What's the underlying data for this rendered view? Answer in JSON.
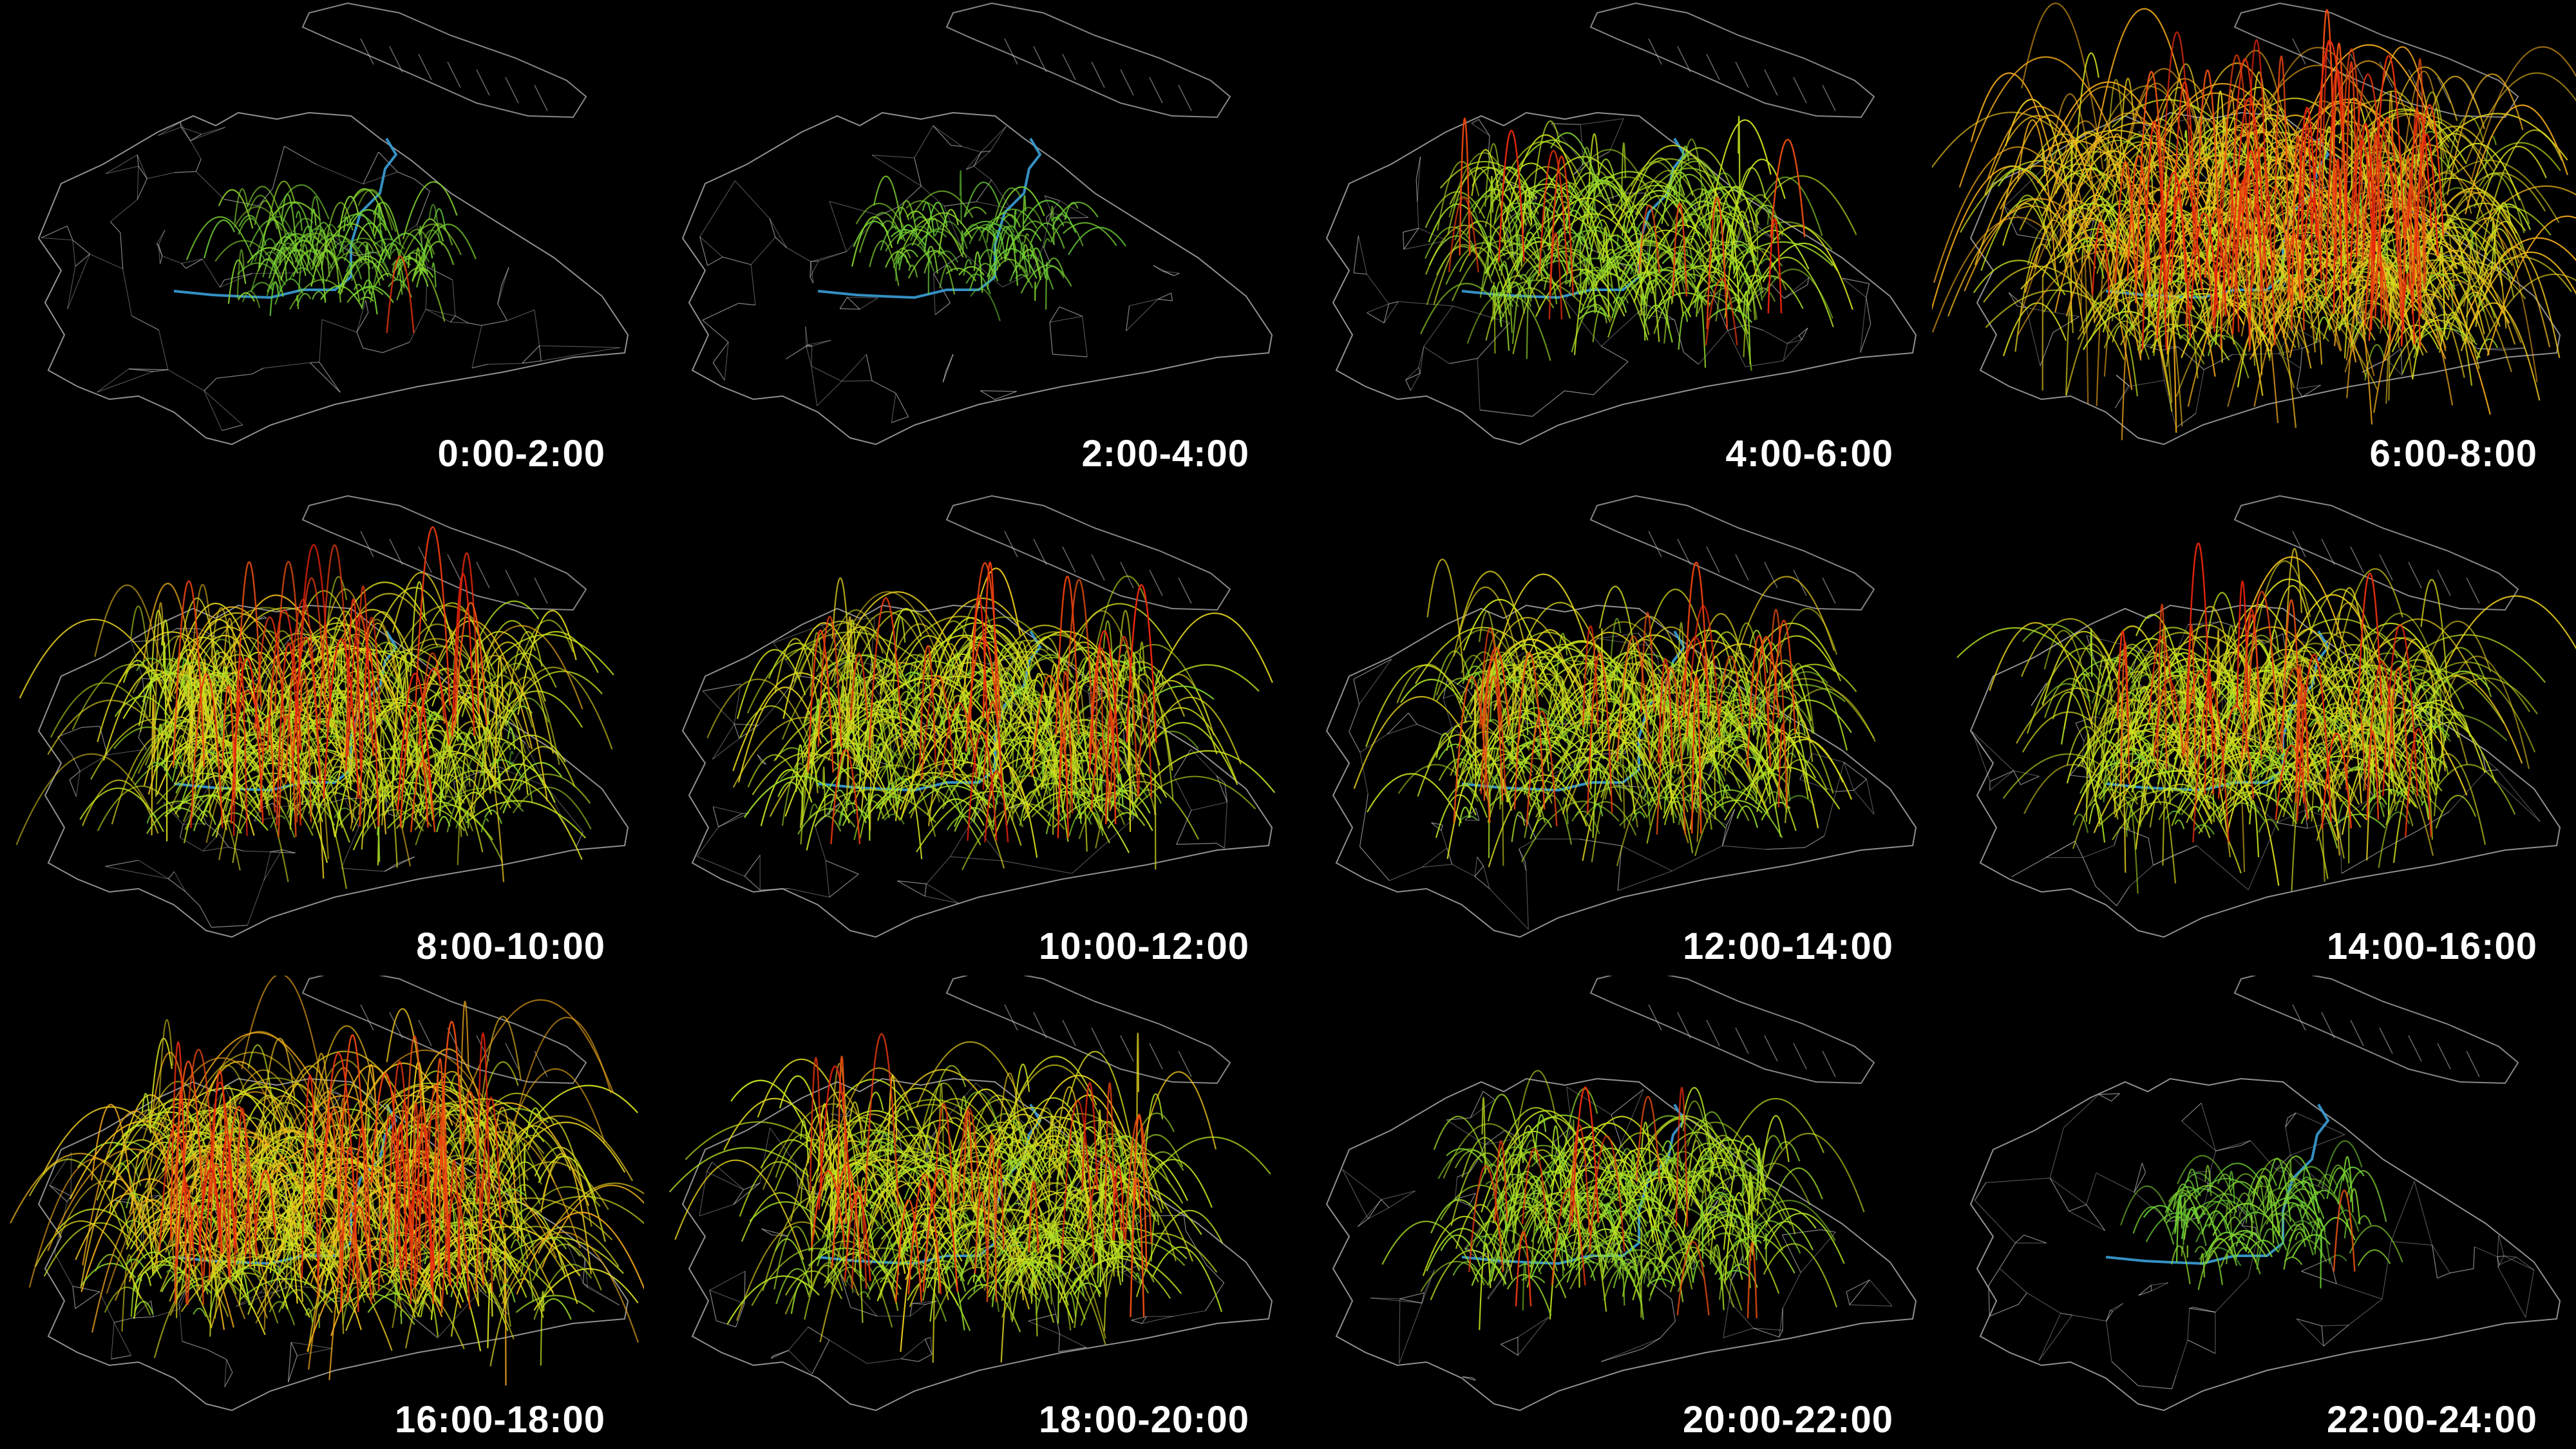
{
  "figure": {
    "type": "small-multiples-flow-map",
    "background_color": "#000000",
    "color_scale": [
      "#3fbf3f",
      "#c8e61e",
      "#f0c81e",
      "#f07814",
      "#e61e0a"
    ],
    "river_color": "#3aa0d8",
    "boundary_color": "#cfcfcf"
  },
  "panels": [
    {
      "label": "0:00-2:00",
      "activity": 0.15
    },
    {
      "label": "2:00-4:00",
      "activity": 0.08
    },
    {
      "label": "4:00-6:00",
      "activity": 0.45
    },
    {
      "label": "6:00-8:00",
      "activity": 1.0
    },
    {
      "label": "8:00-10:00",
      "activity": 0.75
    },
    {
      "label": "10:00-12:00",
      "activity": 0.68
    },
    {
      "label": "12:00-14:00",
      "activity": 0.62
    },
    {
      "label": "14:00-16:00",
      "activity": 0.7
    },
    {
      "label": "16:00-18:00",
      "activity": 0.9
    },
    {
      "label": "18:00-20:00",
      "activity": 0.66
    },
    {
      "label": "20:00-22:00",
      "activity": 0.45
    },
    {
      "label": "22:00-24:00",
      "activity": 0.12
    }
  ]
}
